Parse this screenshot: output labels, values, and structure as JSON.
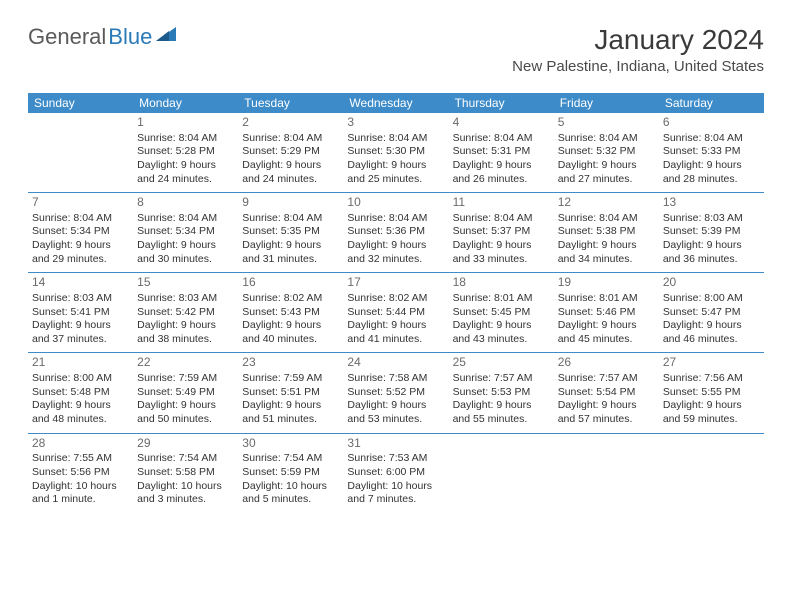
{
  "logo": {
    "text_gray": "General",
    "text_blue": "Blue"
  },
  "title": "January 2024",
  "location": "New Palestine, Indiana, United States",
  "colors": {
    "accent": "#3d8bc8",
    "text": "#333333",
    "title_text": "#3a3a3a",
    "logo_gray": "#5a5a5a",
    "logo_blue": "#2a7ab8",
    "background": "#ffffff"
  },
  "days_of_week": [
    "Sunday",
    "Monday",
    "Tuesday",
    "Wednesday",
    "Thursday",
    "Friday",
    "Saturday"
  ],
  "weeks": [
    [
      {
        "n": "",
        "empty": true
      },
      {
        "n": "1",
        "sr": "Sunrise: 8:04 AM",
        "ss": "Sunset: 5:28 PM",
        "d1": "Daylight: 9 hours",
        "d2": "and 24 minutes."
      },
      {
        "n": "2",
        "sr": "Sunrise: 8:04 AM",
        "ss": "Sunset: 5:29 PM",
        "d1": "Daylight: 9 hours",
        "d2": "and 24 minutes."
      },
      {
        "n": "3",
        "sr": "Sunrise: 8:04 AM",
        "ss": "Sunset: 5:30 PM",
        "d1": "Daylight: 9 hours",
        "d2": "and 25 minutes."
      },
      {
        "n": "4",
        "sr": "Sunrise: 8:04 AM",
        "ss": "Sunset: 5:31 PM",
        "d1": "Daylight: 9 hours",
        "d2": "and 26 minutes."
      },
      {
        "n": "5",
        "sr": "Sunrise: 8:04 AM",
        "ss": "Sunset: 5:32 PM",
        "d1": "Daylight: 9 hours",
        "d2": "and 27 minutes."
      },
      {
        "n": "6",
        "sr": "Sunrise: 8:04 AM",
        "ss": "Sunset: 5:33 PM",
        "d1": "Daylight: 9 hours",
        "d2": "and 28 minutes."
      }
    ],
    [
      {
        "n": "7",
        "sr": "Sunrise: 8:04 AM",
        "ss": "Sunset: 5:34 PM",
        "d1": "Daylight: 9 hours",
        "d2": "and 29 minutes."
      },
      {
        "n": "8",
        "sr": "Sunrise: 8:04 AM",
        "ss": "Sunset: 5:34 PM",
        "d1": "Daylight: 9 hours",
        "d2": "and 30 minutes."
      },
      {
        "n": "9",
        "sr": "Sunrise: 8:04 AM",
        "ss": "Sunset: 5:35 PM",
        "d1": "Daylight: 9 hours",
        "d2": "and 31 minutes."
      },
      {
        "n": "10",
        "sr": "Sunrise: 8:04 AM",
        "ss": "Sunset: 5:36 PM",
        "d1": "Daylight: 9 hours",
        "d2": "and 32 minutes."
      },
      {
        "n": "11",
        "sr": "Sunrise: 8:04 AM",
        "ss": "Sunset: 5:37 PM",
        "d1": "Daylight: 9 hours",
        "d2": "and 33 minutes."
      },
      {
        "n": "12",
        "sr": "Sunrise: 8:04 AM",
        "ss": "Sunset: 5:38 PM",
        "d1": "Daylight: 9 hours",
        "d2": "and 34 minutes."
      },
      {
        "n": "13",
        "sr": "Sunrise: 8:03 AM",
        "ss": "Sunset: 5:39 PM",
        "d1": "Daylight: 9 hours",
        "d2": "and 36 minutes."
      }
    ],
    [
      {
        "n": "14",
        "sr": "Sunrise: 8:03 AM",
        "ss": "Sunset: 5:41 PM",
        "d1": "Daylight: 9 hours",
        "d2": "and 37 minutes."
      },
      {
        "n": "15",
        "sr": "Sunrise: 8:03 AM",
        "ss": "Sunset: 5:42 PM",
        "d1": "Daylight: 9 hours",
        "d2": "and 38 minutes."
      },
      {
        "n": "16",
        "sr": "Sunrise: 8:02 AM",
        "ss": "Sunset: 5:43 PM",
        "d1": "Daylight: 9 hours",
        "d2": "and 40 minutes."
      },
      {
        "n": "17",
        "sr": "Sunrise: 8:02 AM",
        "ss": "Sunset: 5:44 PM",
        "d1": "Daylight: 9 hours",
        "d2": "and 41 minutes."
      },
      {
        "n": "18",
        "sr": "Sunrise: 8:01 AM",
        "ss": "Sunset: 5:45 PM",
        "d1": "Daylight: 9 hours",
        "d2": "and 43 minutes."
      },
      {
        "n": "19",
        "sr": "Sunrise: 8:01 AM",
        "ss": "Sunset: 5:46 PM",
        "d1": "Daylight: 9 hours",
        "d2": "and 45 minutes."
      },
      {
        "n": "20",
        "sr": "Sunrise: 8:00 AM",
        "ss": "Sunset: 5:47 PM",
        "d1": "Daylight: 9 hours",
        "d2": "and 46 minutes."
      }
    ],
    [
      {
        "n": "21",
        "sr": "Sunrise: 8:00 AM",
        "ss": "Sunset: 5:48 PM",
        "d1": "Daylight: 9 hours",
        "d2": "and 48 minutes."
      },
      {
        "n": "22",
        "sr": "Sunrise: 7:59 AM",
        "ss": "Sunset: 5:49 PM",
        "d1": "Daylight: 9 hours",
        "d2": "and 50 minutes."
      },
      {
        "n": "23",
        "sr": "Sunrise: 7:59 AM",
        "ss": "Sunset: 5:51 PM",
        "d1": "Daylight: 9 hours",
        "d2": "and 51 minutes."
      },
      {
        "n": "24",
        "sr": "Sunrise: 7:58 AM",
        "ss": "Sunset: 5:52 PM",
        "d1": "Daylight: 9 hours",
        "d2": "and 53 minutes."
      },
      {
        "n": "25",
        "sr": "Sunrise: 7:57 AM",
        "ss": "Sunset: 5:53 PM",
        "d1": "Daylight: 9 hours",
        "d2": "and 55 minutes."
      },
      {
        "n": "26",
        "sr": "Sunrise: 7:57 AM",
        "ss": "Sunset: 5:54 PM",
        "d1": "Daylight: 9 hours",
        "d2": "and 57 minutes."
      },
      {
        "n": "27",
        "sr": "Sunrise: 7:56 AM",
        "ss": "Sunset: 5:55 PM",
        "d1": "Daylight: 9 hours",
        "d2": "and 59 minutes."
      }
    ],
    [
      {
        "n": "28",
        "sr": "Sunrise: 7:55 AM",
        "ss": "Sunset: 5:56 PM",
        "d1": "Daylight: 10 hours",
        "d2": "and 1 minute."
      },
      {
        "n": "29",
        "sr": "Sunrise: 7:54 AM",
        "ss": "Sunset: 5:58 PM",
        "d1": "Daylight: 10 hours",
        "d2": "and 3 minutes."
      },
      {
        "n": "30",
        "sr": "Sunrise: 7:54 AM",
        "ss": "Sunset: 5:59 PM",
        "d1": "Daylight: 10 hours",
        "d2": "and 5 minutes."
      },
      {
        "n": "31",
        "sr": "Sunrise: 7:53 AM",
        "ss": "Sunset: 6:00 PM",
        "d1": "Daylight: 10 hours",
        "d2": "and 7 minutes."
      },
      {
        "n": "",
        "empty": true
      },
      {
        "n": "",
        "empty": true
      },
      {
        "n": "",
        "empty": true
      }
    ]
  ]
}
